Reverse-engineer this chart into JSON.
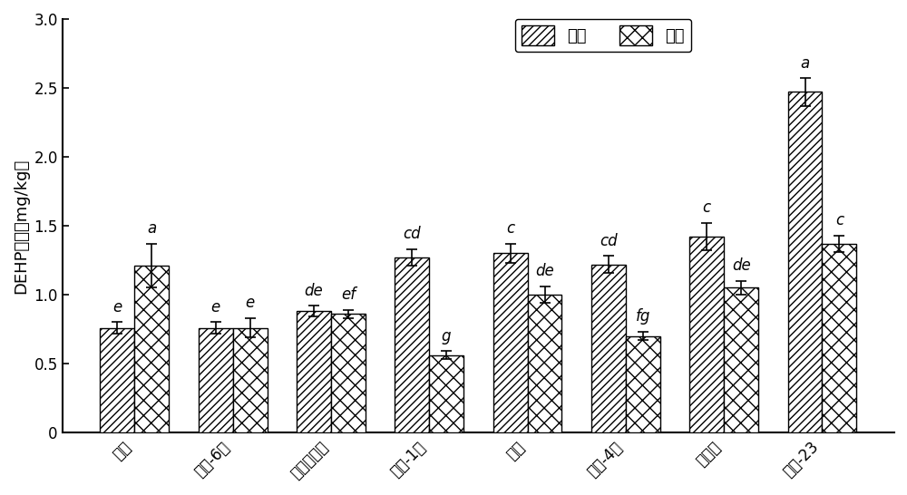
{
  "categories": [
    "万青",
    "金海-6号",
    "墨西哥玉米",
    "华农-1号",
    "华海",
    "会单-4号",
    "白玉糯",
    "超甜-23"
  ],
  "stem_leaf": [
    0.76,
    0.76,
    0.88,
    1.27,
    1.3,
    1.22,
    1.42,
    2.47
  ],
  "root": [
    1.21,
    0.76,
    0.86,
    0.56,
    1.0,
    0.7,
    1.05,
    1.37
  ],
  "stem_leaf_err": [
    0.04,
    0.04,
    0.04,
    0.06,
    0.07,
    0.06,
    0.1,
    0.1
  ],
  "root_err": [
    0.16,
    0.07,
    0.03,
    0.03,
    0.06,
    0.03,
    0.05,
    0.06
  ],
  "stem_leaf_labels": [
    "e",
    "e",
    "de",
    "cd",
    "c",
    "cd",
    "c",
    "a"
  ],
  "root_labels": [
    "a",
    "e",
    "ef",
    "g",
    "de",
    "fg",
    "de",
    "c"
  ],
  "ylabel": "DEHP含量（mg/kg）",
  "ylim": [
    0,
    3.0
  ],
  "yticks": [
    0,
    0.5,
    1.0,
    1.5,
    2.0,
    2.5,
    3.0
  ],
  "legend_stem": "茎叶",
  "legend_root": "根系",
  "bar_width": 0.35,
  "figsize": [
    10,
    5.46
  ],
  "dpi": 100,
  "label_fontsize": 13,
  "tick_fontsize": 12,
  "annot_fontsize": 12
}
